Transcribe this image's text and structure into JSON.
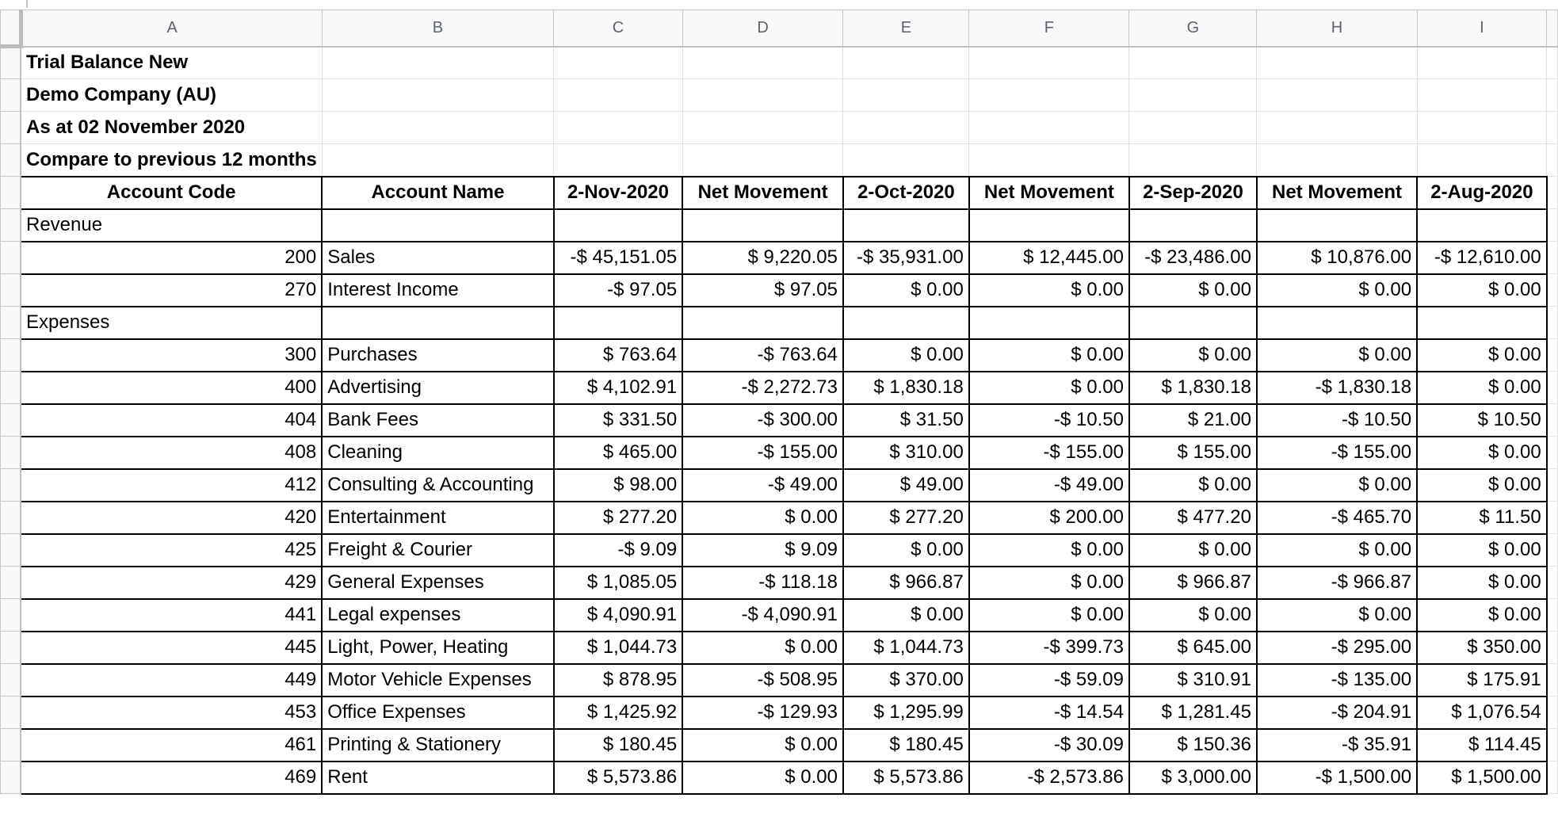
{
  "columns": [
    "A",
    "B",
    "C",
    "D",
    "E",
    "F",
    "G",
    "H",
    "I",
    ""
  ],
  "titles": [
    "Trial Balance New",
    "Demo Company (AU)",
    "As at 02 November 2020",
    "Compare to previous 12 months"
  ],
  "headers": [
    "Account Code",
    "Account Name",
    "2-Nov-2020",
    "Net Movement",
    "2-Oct-2020",
    "Net Movement",
    "2-Sep-2020",
    "Net Movement",
    "2-Aug-2020"
  ],
  "rows": [
    {
      "section": "Revenue"
    },
    {
      "code": "200",
      "name": "Sales",
      "values": [
        "-$ 45,151.05",
        "$ 9,220.05",
        "-$ 35,931.00",
        "$ 12,445.00",
        "-$ 23,486.00",
        "$ 10,876.00",
        "-$ 12,610.00"
      ]
    },
    {
      "code": "270",
      "name": "Interest Income",
      "values": [
        "-$ 97.05",
        "$ 97.05",
        "$ 0.00",
        "$ 0.00",
        "$ 0.00",
        "$ 0.00",
        "$ 0.00"
      ]
    },
    {
      "section": "Expenses"
    },
    {
      "code": "300",
      "name": "Purchases",
      "values": [
        "$ 763.64",
        "-$ 763.64",
        "$ 0.00",
        "$ 0.00",
        "$ 0.00",
        "$ 0.00",
        "$ 0.00"
      ]
    },
    {
      "code": "400",
      "name": "Advertising",
      "values": [
        "$ 4,102.91",
        "-$ 2,272.73",
        "$ 1,830.18",
        "$ 0.00",
        "$ 1,830.18",
        "-$ 1,830.18",
        "$ 0.00"
      ]
    },
    {
      "code": "404",
      "name": "Bank Fees",
      "values": [
        "$ 331.50",
        "-$ 300.00",
        "$ 31.50",
        "-$ 10.50",
        "$ 21.00",
        "-$ 10.50",
        "$ 10.50"
      ]
    },
    {
      "code": "408",
      "name": "Cleaning",
      "values": [
        "$ 465.00",
        "-$ 155.00",
        "$ 310.00",
        "-$ 155.00",
        "$ 155.00",
        "-$ 155.00",
        "$ 0.00"
      ]
    },
    {
      "code": "412",
      "name": "Consulting & Accounting",
      "values": [
        "$ 98.00",
        "-$ 49.00",
        "$ 49.00",
        "-$ 49.00",
        "$ 0.00",
        "$ 0.00",
        "$ 0.00"
      ]
    },
    {
      "code": "420",
      "name": "Entertainment",
      "values": [
        "$ 277.20",
        "$ 0.00",
        "$ 277.20",
        "$ 200.00",
        "$ 477.20",
        "-$ 465.70",
        "$ 11.50"
      ]
    },
    {
      "code": "425",
      "name": "Freight & Courier",
      "values": [
        "-$ 9.09",
        "$ 9.09",
        "$ 0.00",
        "$ 0.00",
        "$ 0.00",
        "$ 0.00",
        "$ 0.00"
      ]
    },
    {
      "code": "429",
      "name": "General Expenses",
      "values": [
        "$ 1,085.05",
        "-$ 118.18",
        "$ 966.87",
        "$ 0.00",
        "$ 966.87",
        "-$ 966.87",
        "$ 0.00"
      ]
    },
    {
      "code": "441",
      "name": "Legal expenses",
      "values": [
        "$ 4,090.91",
        "-$ 4,090.91",
        "$ 0.00",
        "$ 0.00",
        "$ 0.00",
        "$ 0.00",
        "$ 0.00"
      ]
    },
    {
      "code": "445",
      "name": "Light, Power, Heating",
      "values": [
        "$ 1,044.73",
        "$ 0.00",
        "$ 1,044.73",
        "-$ 399.73",
        "$ 645.00",
        "-$ 295.00",
        "$ 350.00"
      ]
    },
    {
      "code": "449",
      "name": "Motor Vehicle Expenses",
      "values": [
        "$ 878.95",
        "-$ 508.95",
        "$ 370.00",
        "-$ 59.09",
        "$ 310.91",
        "-$ 135.00",
        "$ 175.91"
      ]
    },
    {
      "code": "453",
      "name": "Office Expenses",
      "values": [
        "$ 1,425.92",
        "-$ 129.93",
        "$ 1,295.99",
        "-$ 14.54",
        "$ 1,281.45",
        "-$ 204.91",
        "$ 1,076.54"
      ]
    },
    {
      "code": "461",
      "name": "Printing & Stationery",
      "values": [
        "$ 180.45",
        "$ 0.00",
        "$ 180.45",
        "-$ 30.09",
        "$ 150.36",
        "-$ 35.91",
        "$ 114.45"
      ]
    },
    {
      "code": "469",
      "name": "Rent",
      "values": [
        "$ 5,573.86",
        "$ 0.00",
        "$ 5,573.86",
        "-$ 2,573.86",
        "$ 3,000.00",
        "-$ 1,500.00",
        "$ 1,500.00"
      ]
    }
  ]
}
